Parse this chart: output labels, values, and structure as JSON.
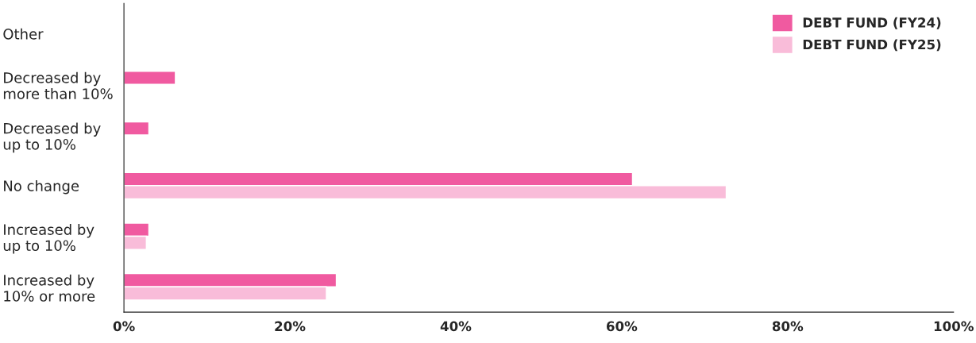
{
  "chart_data": {
    "type": "bar",
    "orientation": "horizontal",
    "categories": [
      "Other",
      "Decreased by\nmore than 10%",
      "Decreased by\nup to 10%",
      "No change",
      "Increased by\nup to 10%",
      "Increased by\n10% or more"
    ],
    "series": [
      {
        "name": "DEBT FUND (FY24)",
        "color": "#f05aa0",
        "values": [
          null,
          6.2,
          3.0,
          61.3,
          3.0,
          25.6
        ]
      },
      {
        "name": "DEBT FUND (FY25)",
        "color": "#f9bcd9",
        "values": [
          null,
          null,
          null,
          72.6,
          2.7,
          24.4
        ]
      }
    ],
    "xlim": [
      0,
      100
    ],
    "xticks": [
      {
        "value": 0,
        "label": "0%"
      },
      {
        "value": 20,
        "label": "20%"
      },
      {
        "value": 40,
        "label": "40%"
      },
      {
        "value": 60,
        "label": "60%"
      },
      {
        "value": 80,
        "label": "80%"
      },
      {
        "value": 100,
        "label": "100%"
      }
    ],
    "grid": false,
    "legend": "top right"
  }
}
